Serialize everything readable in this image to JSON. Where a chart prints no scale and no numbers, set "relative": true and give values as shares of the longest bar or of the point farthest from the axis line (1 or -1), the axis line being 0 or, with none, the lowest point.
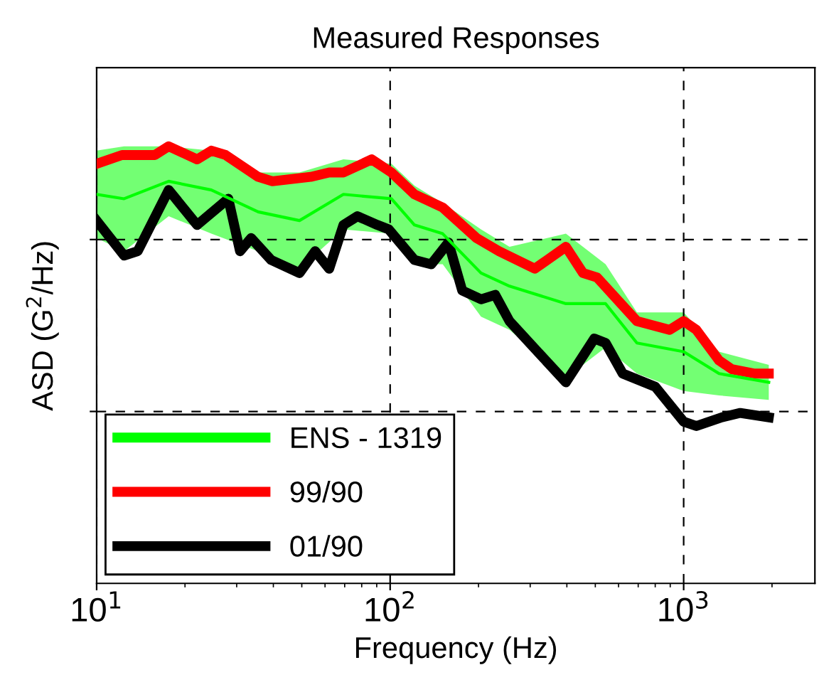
{
  "chart_data": {
    "type": "line",
    "title": "Measured Responses",
    "xlabel": "Frequency (Hz)",
    "ylabel": "ASD (G$^{2}$/Hz)",
    "relative": true,
    "log": "x",
    "xlim": [
      10,
      2800
    ],
    "xticks": [
      {
        "value": 10,
        "label": "10$^{1}$"
      },
      {
        "value": 100,
        "label": "10$^{2}$"
      },
      {
        "value": 1000,
        "label": "10$^{3}$"
      }
    ],
    "grid": true,
    "legend": "bottom left",
    "line_style": "solid",
    "marker": "none",
    "series": [
      {
        "name": "ENS - 1319",
        "color": "#00ff00",
        "x": [
          10,
          12.4,
          17.6,
          24.6,
          35.5,
          49.1,
          69.3,
          101,
          121,
          151,
          204,
          255,
          397,
          542,
          693,
          1000,
          1320,
          1950
        ],
        "values": [
          0.89,
          0.88,
          0.92,
          0.9,
          0.85,
          0.83,
          0.89,
          0.88,
          0.82,
          0.8,
          0.71,
          0.68,
          0.64,
          0.64,
          0.55,
          0.53,
          0.48,
          0.46
        ],
        "upper": [
          0.99,
          1.0,
          1.0,
          0.99,
          0.94,
          0.94,
          0.97,
          0.96,
          0.91,
          0.87,
          0.81,
          0.77,
          0.8,
          0.73,
          0.62,
          0.62,
          0.53,
          0.5
        ],
        "lower": [
          0.79,
          0.76,
          0.84,
          0.8,
          0.76,
          0.72,
          0.81,
          0.8,
          0.73,
          0.73,
          0.61,
          0.58,
          0.47,
          0.54,
          0.48,
          0.44,
          0.43,
          0.42
        ]
      },
      {
        "name": "99/90",
        "color": "#ff0000",
        "x": [
          10,
          12.2,
          15.8,
          17.6,
          22.0,
          24.6,
          27.5,
          35.5,
          39.7,
          53.6,
          62.0,
          69.3,
          86.5,
          101,
          121,
          151,
          197,
          235,
          311,
          397,
          454,
          507,
          693,
          895,
          1000,
          1105,
          1320,
          1460,
          1745,
          1950
        ],
        "values": [
          0.96,
          0.98,
          0.98,
          1.0,
          0.97,
          0.99,
          0.98,
          0.93,
          0.92,
          0.93,
          0.94,
          0.94,
          0.97,
          0.94,
          0.89,
          0.86,
          0.79,
          0.76,
          0.72,
          0.77,
          0.71,
          0.7,
          0.6,
          0.58,
          0.6,
          0.58,
          0.51,
          0.49,
          0.48,
          0.48
        ]
      },
      {
        "name": "01/90",
        "color": "#000000",
        "x": [
          10,
          12.4,
          13.8,
          17.6,
          22.0,
          28.1,
          30.8,
          33.6,
          39.3,
          49.1,
          55.5,
          62.0,
          69.3,
          77.4,
          90.5,
          98.9,
          121,
          138,
          158,
          176,
          204,
          228,
          255,
          397,
          496,
          542,
          620,
          800,
          1000,
          1105,
          1350,
          1560,
          1950
        ],
        "values": [
          0.83,
          0.75,
          0.76,
          0.9,
          0.82,
          0.88,
          0.76,
          0.79,
          0.74,
          0.71,
          0.76,
          0.72,
          0.82,
          0.84,
          0.82,
          0.81,
          0.74,
          0.73,
          0.78,
          0.67,
          0.65,
          0.66,
          0.6,
          0.46,
          0.56,
          0.55,
          0.48,
          0.45,
          0.37,
          0.36,
          0.38,
          0.39,
          0.38
        ]
      }
    ]
  }
}
